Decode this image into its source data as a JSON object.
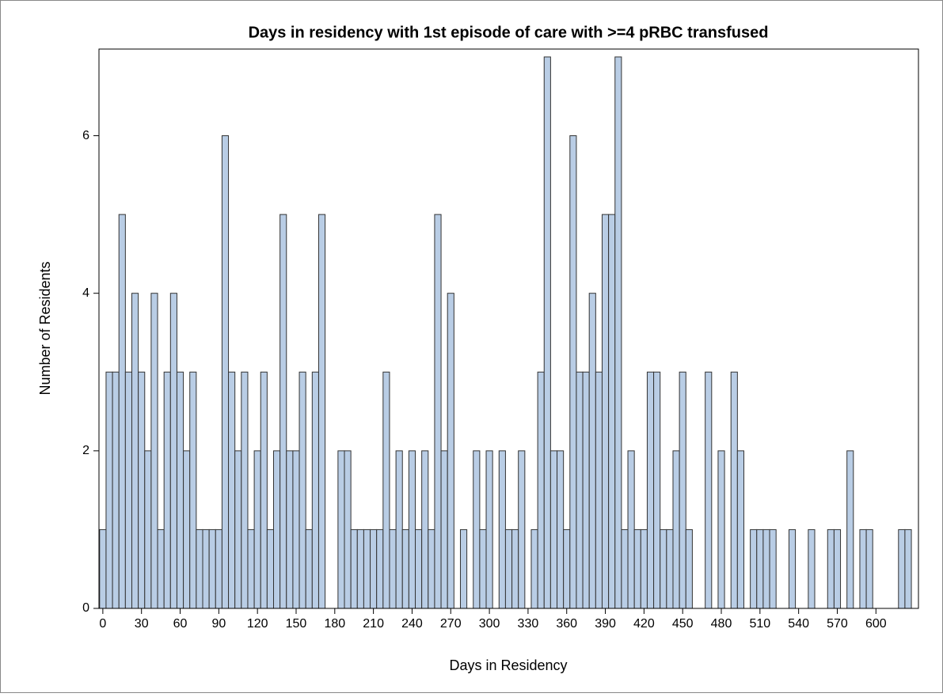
{
  "chart_data": {
    "type": "histogram",
    "title": "Days in residency with 1st episode of care with >=4 pRBC transfused",
    "x_label": "Days in Residency",
    "y_label": "Number of Residents",
    "color": "#b9cde5",
    "bins": [
      -2.5,
      2.5,
      7.5,
      12.5,
      17.5,
      22.5,
      27.5,
      32.5,
      37.5,
      42.5,
      47.5,
      52.5,
      57.5,
      62.5,
      67.5,
      72.5,
      77.5,
      82.5,
      87.5,
      92.5,
      97.5,
      102.5,
      107.5,
      112.5,
      117.5,
      122.5,
      127.5,
      132.5,
      137.5,
      142.5,
      147.5,
      152.5,
      157.5,
      162.5,
      167.5,
      172.5,
      177.5,
      182.5,
      187.5,
      192.5,
      197.5,
      202.5,
      207.5,
      212.5,
      217.5,
      222.5,
      227.5,
      232.5,
      237.5,
      242.5,
      247.5,
      252.5,
      257.5,
      262.5,
      267.5,
      272.5,
      277.5,
      282.5,
      287.5,
      292.5,
      297.5,
      302.5,
      307.5,
      312.5,
      317.5,
      322.5,
      327.5,
      332.5,
      337.5,
      342.5,
      347.5,
      352.5,
      357.5,
      362.5,
      367.5,
      372.5,
      377.5,
      382.5,
      387.5,
      392.5,
      397.5,
      402.5,
      407.5,
      412.5,
      417.5,
      422.5,
      427.5,
      432.5,
      437.5,
      442.5,
      447.5,
      452.5,
      457.5,
      462.5,
      467.5,
      472.5,
      477.5,
      482.5,
      487.5,
      492.5,
      497.5,
      502.5,
      507.5,
      512.5,
      517.5,
      522.5,
      527.5,
      532.5,
      537.5,
      542.5,
      547.5,
      552.5,
      557.5,
      562.5,
      567.5,
      572.5,
      577.5,
      582.5,
      587.5,
      592.5,
      597.5,
      602.5,
      607.5,
      612.5,
      617.5,
      622.5,
      627.5
    ],
    "values": [
      1,
      3,
      3,
      5,
      3,
      4,
      3,
      2,
      4,
      1,
      3,
      4,
      3,
      2,
      3,
      1,
      1,
      1,
      1,
      6,
      3,
      2,
      3,
      1,
      2,
      3,
      1,
      2,
      5,
      2,
      2,
      3,
      1,
      3,
      5,
      0,
      0,
      2,
      2,
      1,
      1,
      1,
      1,
      1,
      3,
      1,
      2,
      1,
      2,
      1,
      2,
      1,
      5,
      2,
      4,
      0,
      1,
      0,
      2,
      1,
      2,
      0,
      2,
      1,
      1,
      2,
      0,
      1,
      3,
      7,
      2,
      2,
      1,
      6,
      3,
      3,
      4,
      3,
      5,
      5,
      7,
      1,
      2,
      1,
      1,
      3,
      3,
      1,
      1,
      2,
      3,
      1,
      0,
      0,
      3,
      0,
      2,
      0,
      3,
      2,
      0,
      1,
      1,
      1,
      1,
      0,
      0,
      1,
      0,
      0,
      1,
      0,
      0,
      1,
      1,
      0,
      2,
      0,
      1,
      1,
      0,
      0,
      0,
      0,
      1,
      1
    ],
    "xlim": [
      -3,
      633
    ],
    "ylim": [
      0,
      7.1
    ],
    "xticks": [
      0,
      30,
      60,
      90,
      120,
      150,
      180,
      210,
      240,
      270,
      300,
      330,
      360,
      390,
      420,
      450,
      480,
      510,
      540,
      570,
      600
    ],
    "yticks": [
      0,
      2,
      4,
      6
    ]
  }
}
